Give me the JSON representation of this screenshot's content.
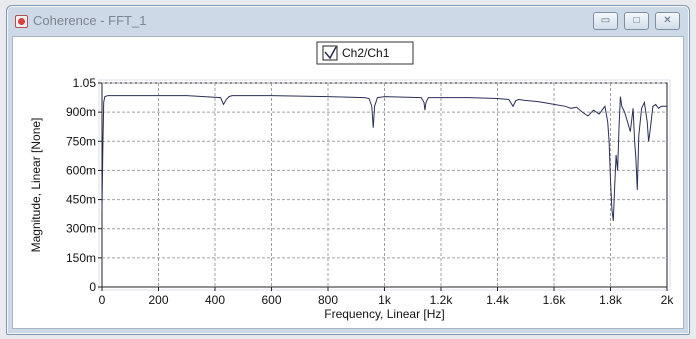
{
  "window": {
    "title": "Coherence - FFT_1"
  },
  "title_buttons": {
    "minimize": "▭",
    "maximize": "□",
    "close": "✕"
  },
  "colors": {
    "series": "#2b2f55",
    "grid": "#a0a0a0",
    "frame": "#d8e2ec"
  },
  "chart_data": {
    "type": "line",
    "xlabel": "Frequency, Linear [Hz]",
    "ylabel": "Magnitude, Linear [None]",
    "xlim": [
      0,
      2000
    ],
    "ylim": [
      0,
      1.05
    ],
    "xticks": [
      0,
      200,
      400,
      600,
      800,
      1000,
      1200,
      1400,
      1600,
      1800,
      2000
    ],
    "xtick_labels": [
      "0",
      "200",
      "400",
      "600",
      "800",
      "1k",
      "1.2k",
      "1.4k",
      "1.6k",
      "1.8k",
      "2k"
    ],
    "yticks": [
      0,
      0.15,
      0.3,
      0.45,
      0.6,
      0.75,
      0.9,
      1.05
    ],
    "ytick_labels": [
      "0",
      "150m",
      "300m",
      "450m",
      "600m",
      "750m",
      "900m",
      "1.05"
    ],
    "grid": true,
    "legend_position": "top-center",
    "series": [
      {
        "name": "Ch2/Ch1",
        "x": [
          0,
          3,
          6,
          10,
          20,
          100,
          200,
          300,
          420,
          430,
          440,
          450,
          460,
          600,
          800,
          930,
          945,
          955,
          960,
          965,
          975,
          1000,
          1130,
          1140,
          1143,
          1147,
          1155,
          1200,
          1300,
          1400,
          1440,
          1455,
          1465,
          1475,
          1500,
          1540,
          1560,
          1580,
          1600,
          1640,
          1660,
          1680,
          1700,
          1720,
          1740,
          1760,
          1780,
          1790,
          1795,
          1800,
          1805,
          1810,
          1815,
          1820,
          1825,
          1830,
          1835,
          1840,
          1850,
          1860,
          1870,
          1880,
          1885,
          1890,
          1895,
          1900,
          1910,
          1920,
          1930,
          1935,
          1940,
          1950,
          1960,
          1970,
          1980,
          1990,
          2000
        ],
        "y": [
          0.4,
          0.7,
          0.95,
          0.98,
          0.985,
          0.985,
          0.985,
          0.985,
          0.975,
          0.94,
          0.965,
          0.98,
          0.985,
          0.985,
          0.98,
          0.975,
          0.97,
          0.93,
          0.82,
          0.93,
          0.975,
          0.98,
          0.975,
          0.95,
          0.91,
          0.95,
          0.975,
          0.975,
          0.975,
          0.97,
          0.965,
          0.93,
          0.96,
          0.965,
          0.96,
          0.955,
          0.95,
          0.945,
          0.94,
          0.93,
          0.92,
          0.925,
          0.9,
          0.88,
          0.91,
          0.89,
          0.93,
          0.85,
          0.75,
          0.55,
          0.4,
          0.34,
          0.52,
          0.68,
          0.6,
          0.82,
          0.98,
          0.93,
          0.9,
          0.85,
          0.8,
          0.92,
          0.76,
          0.66,
          0.5,
          0.78,
          0.92,
          0.95,
          0.85,
          0.75,
          0.8,
          0.93,
          0.94,
          0.92,
          0.93,
          0.93,
          0.93
        ]
      }
    ]
  }
}
